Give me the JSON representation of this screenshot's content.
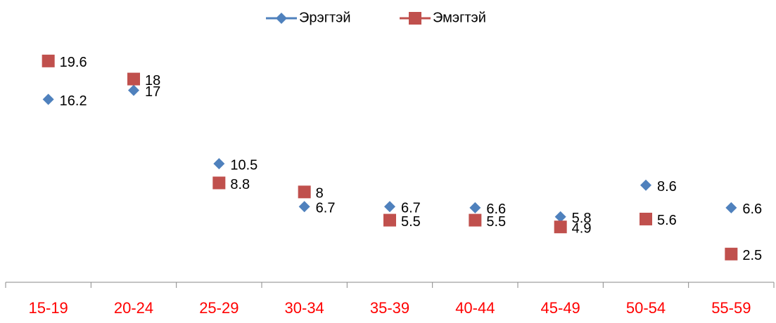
{
  "chart_data": {
    "type": "line",
    "categories": [
      "15-19",
      "20-24",
      "25-29",
      "30-34",
      "35-39",
      "40-44",
      "45-49",
      "50-54",
      "55-59"
    ],
    "series": [
      {
        "name": "Эрэгтэй",
        "color": "#4f81bd",
        "marker": "diamond",
        "values": [
          16.2,
          17,
          10.5,
          6.7,
          6.7,
          6.6,
          5.8,
          8.6,
          6.6
        ]
      },
      {
        "name": "Эмэгтэй",
        "color": "#c0504d",
        "marker": "square",
        "values": [
          19.6,
          18,
          8.8,
          8,
          5.5,
          5.5,
          4.9,
          5.6,
          2.5
        ]
      }
    ],
    "ylim": [
      0,
      25
    ],
    "legend": "top",
    "category_color": "#ff0000",
    "lines": false
  }
}
